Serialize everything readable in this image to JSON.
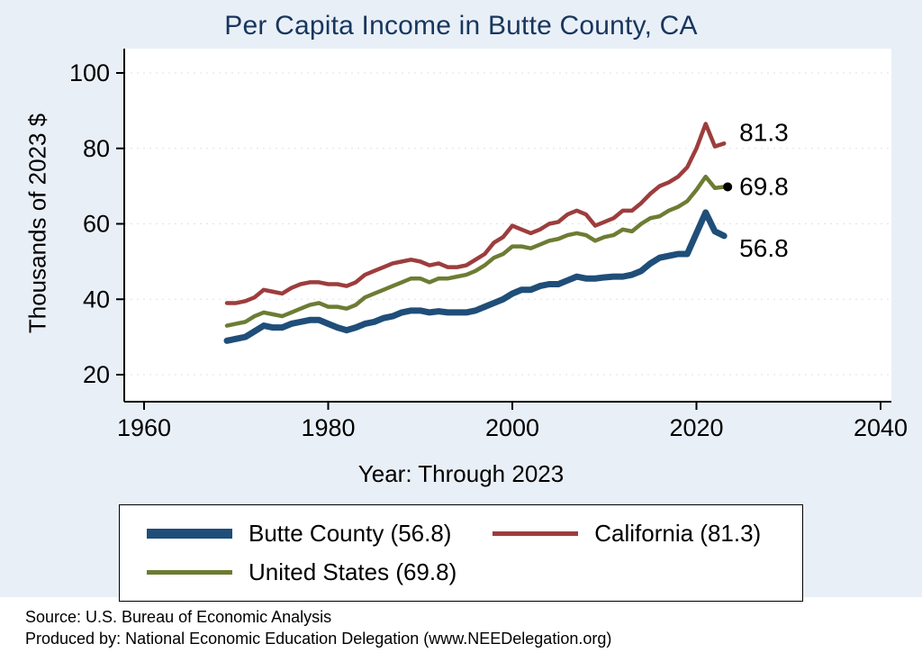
{
  "chart_data": {
    "type": "line",
    "title": "Per Capita Income in Butte County, CA",
    "xlabel": "Year: Through 2023",
    "ylabel": "Thousands of 2023 $",
    "xticks": [
      1960,
      1980,
      2000,
      2020,
      2040
    ],
    "yticks": [
      20,
      40,
      60,
      80,
      100
    ],
    "xlim": [
      1958,
      2041
    ],
    "ylim": [
      13,
      106
    ],
    "grid": true,
    "legend_position": "bottom",
    "background": "#e9eff7",
    "plot_background": "#ffffff",
    "x": [
      1969,
      1970,
      1971,
      1972,
      1973,
      1974,
      1975,
      1976,
      1977,
      1978,
      1979,
      1980,
      1981,
      1982,
      1983,
      1984,
      1985,
      1986,
      1987,
      1988,
      1989,
      1990,
      1991,
      1992,
      1993,
      1994,
      1995,
      1996,
      1997,
      1998,
      1999,
      2000,
      2001,
      2002,
      2003,
      2004,
      2005,
      2006,
      2007,
      2008,
      2009,
      2010,
      2011,
      2012,
      2013,
      2014,
      2015,
      2016,
      2017,
      2018,
      2019,
      2020,
      2021,
      2022,
      2023
    ],
    "series": [
      {
        "name": "Butte County",
        "legend_label": "Butte County (56.8)",
        "end_label": "56.8",
        "end_dot": false,
        "label_dy": 14,
        "color": "#1f4e79",
        "line_width": 7,
        "values": [
          29.0,
          29.5,
          30.0,
          31.5,
          33.0,
          32.5,
          32.5,
          33.5,
          34.0,
          34.5,
          34.5,
          33.5,
          32.5,
          31.8,
          32.5,
          33.5,
          34.0,
          35.0,
          35.5,
          36.5,
          37.0,
          37.0,
          36.5,
          36.8,
          36.5,
          36.5,
          36.5,
          37.0,
          38.0,
          39.0,
          40.0,
          41.5,
          42.5,
          42.5,
          43.5,
          44.0,
          44.0,
          45.0,
          46.0,
          45.5,
          45.5,
          45.8,
          46.0,
          46.0,
          46.5,
          47.5,
          49.5,
          51.0,
          51.5,
          52.0,
          52.0,
          57.5,
          63.0,
          58.0,
          56.8
        ]
      },
      {
        "name": "California",
        "legend_label": "California (81.3)",
        "end_label": "81.3",
        "end_dot": false,
        "label_dy": -12,
        "color": "#9d3d3d",
        "line_width": 4.5,
        "values": [
          39.0,
          39.0,
          39.5,
          40.5,
          42.5,
          42.0,
          41.5,
          43.0,
          44.0,
          44.5,
          44.5,
          44.0,
          44.0,
          43.5,
          44.5,
          46.5,
          47.5,
          48.5,
          49.5,
          50.0,
          50.5,
          50.0,
          49.0,
          49.5,
          48.5,
          48.5,
          49.0,
          50.5,
          52.0,
          55.0,
          56.5,
          59.5,
          58.5,
          57.5,
          58.5,
          60.0,
          60.5,
          62.5,
          63.5,
          62.5,
          59.5,
          60.5,
          61.5,
          63.5,
          63.5,
          65.5,
          68.0,
          70.0,
          71.0,
          72.5,
          75.0,
          80.0,
          86.5,
          80.5,
          81.3
        ]
      },
      {
        "name": "United States",
        "legend_label": "United States (69.8)",
        "end_label": "69.8",
        "end_dot": true,
        "label_dy": 0,
        "color": "#6d7c34",
        "line_width": 4.5,
        "values": [
          33.0,
          33.5,
          34.0,
          35.5,
          36.5,
          36.0,
          35.5,
          36.5,
          37.5,
          38.5,
          39.0,
          38.0,
          38.0,
          37.5,
          38.5,
          40.5,
          41.5,
          42.5,
          43.5,
          44.5,
          45.5,
          45.5,
          44.5,
          45.5,
          45.5,
          46.0,
          46.5,
          47.5,
          49.0,
          51.0,
          52.0,
          54.0,
          54.0,
          53.5,
          54.5,
          55.5,
          56.0,
          57.0,
          57.5,
          57.0,
          55.5,
          56.5,
          57.0,
          58.5,
          58.0,
          60.0,
          61.5,
          62.0,
          63.5,
          64.5,
          66.0,
          69.0,
          72.5,
          69.5,
          69.8
        ]
      }
    ]
  },
  "footer": {
    "source": "Source: U.S. Bureau of Economic Analysis",
    "produced": "Produced by: National Economic Education Delegation (www.NEEDelegation.org)"
  }
}
